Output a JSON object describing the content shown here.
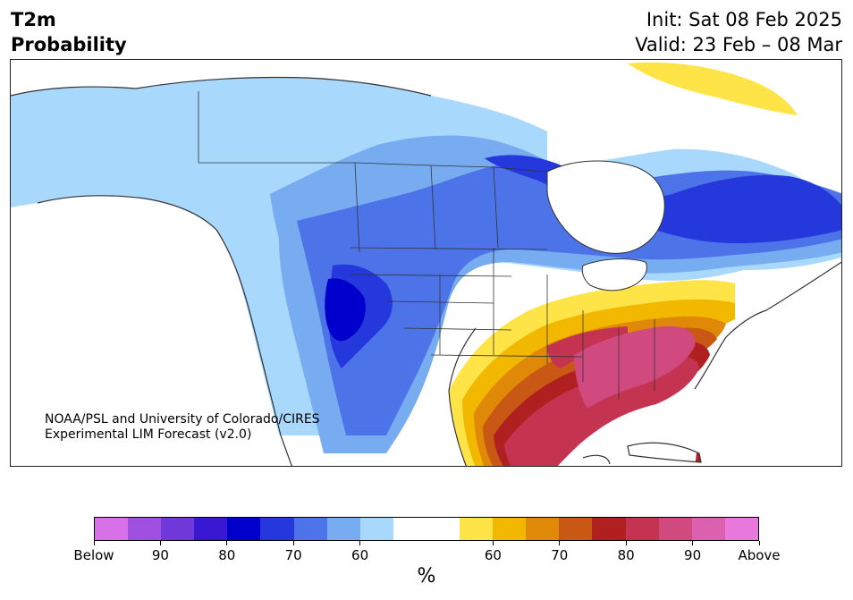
{
  "header": {
    "title_line1": "T2m",
    "title_line2": "Probability",
    "init": "Init: Sat 08 Feb 2025",
    "valid": "Valid: 23 Feb – 08 Mar"
  },
  "credit": {
    "line1": "NOAA/PSL and University of Colorado/CIRES",
    "line2": "Experimental LIM Forecast (v2.0)"
  },
  "colorbar": {
    "unit": "%",
    "colors": [
      "#d870e8",
      "#a050e0",
      "#7038d8",
      "#3818d0",
      "#0000cc",
      "#2438dc",
      "#4c74e8",
      "#78acf0",
      "#a8d8fc",
      "#ffffff",
      "#ffffff",
      "#ffe448",
      "#f2b800",
      "#e08808",
      "#c85814",
      "#b02020",
      "#c43450",
      "#d04a80",
      "#dc60b0",
      "#e878dc"
    ],
    "tick_labels": [
      "Below",
      "90",
      "80",
      "70",
      "60",
      "60",
      "70",
      "80",
      "90",
      "Above"
    ],
    "tick_fractions": [
      0,
      0.1,
      0.2,
      0.3,
      0.4,
      0.6,
      0.7,
      0.8,
      0.9,
      1
    ]
  },
  "map_colors": {
    "below_60": "#a8d8fc",
    "below_60_70": "#78acf0",
    "below_70_75": "#4c74e8",
    "below_75_80": "#2438dc",
    "below_80_85": "#0000cc",
    "above_50_60": "#ffe448",
    "above_60_65": "#f2b800",
    "above_65_70": "#e08808",
    "above_70_75": "#c85814",
    "above_75_80": "#b02020",
    "above_80_85": "#c43450",
    "above_85_90": "#d04a80"
  }
}
